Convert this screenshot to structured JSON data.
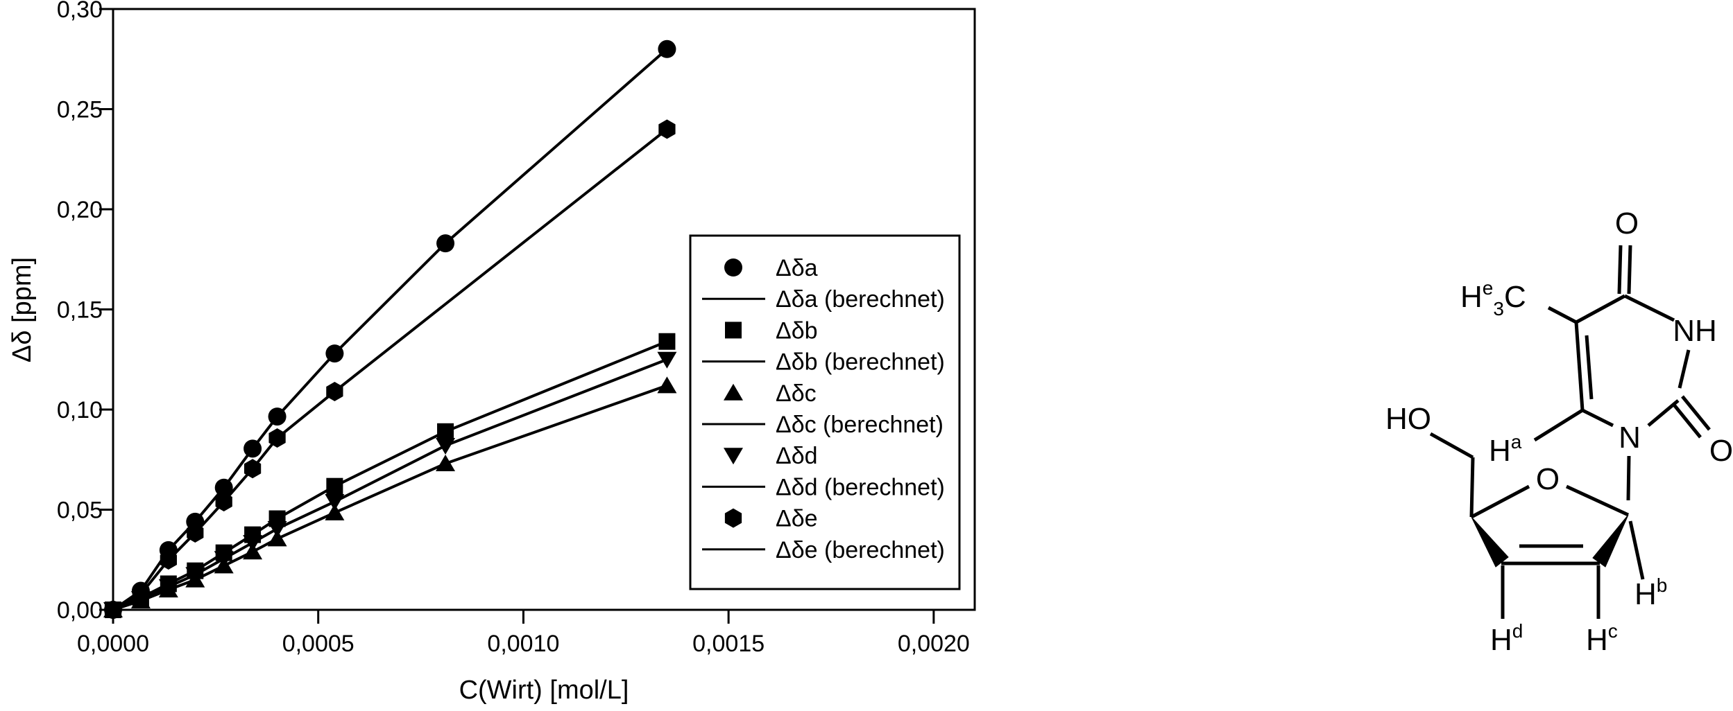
{
  "figure": {
    "background": "#ffffff",
    "ink": "#000000",
    "description_visible_text_only": true
  },
  "chart_data": {
    "type": "scatter",
    "title": "",
    "xlabel": "C(Wirt) [mol/L]",
    "ylabel": "Δδ [ppm]",
    "xlim": [
      0,
      0.0021
    ],
    "ylim": [
      0,
      0.3
    ],
    "grid": false,
    "decimal_separator": ",",
    "legend_position": "inside-right",
    "x_ticks": {
      "values": [
        0,
        0.0005,
        0.001,
        0.0015,
        0.002
      ],
      "labels": [
        "0,0000",
        "0,0005",
        "0,0010",
        "0,0015",
        "0,0020"
      ]
    },
    "y_ticks": {
      "values": [
        0,
        0.05,
        0.1,
        0.15,
        0.2,
        0.25,
        0.3
      ],
      "labels": [
        "0,00",
        "0,05",
        "0,10",
        "0,15",
        "0,20",
        "0,25",
        "0,30"
      ]
    },
    "series": [
      {
        "id": "dda",
        "label": "Δδa",
        "fit_label": "Δδa (berechnet)",
        "marker": "circle",
        "color": "#000000",
        "points": [
          [
            0,
            0
          ],
          [
            6.75e-05,
            0.0095
          ],
          [
            0.000135,
            0.0298
          ],
          [
            0.0002,
            0.044
          ],
          [
            0.00027,
            0.061
          ],
          [
            0.00034,
            0.0805
          ],
          [
            0.0004,
            0.0965
          ],
          [
            0.00054,
            0.128
          ],
          [
            0.00081,
            0.183
          ],
          [
            0.00135,
            0.28
          ]
        ]
      },
      {
        "id": "ddb",
        "label": "Δδb",
        "fit_label": "Δδb (berechnet)",
        "marker": "square",
        "color": "#000000",
        "points": [
          [
            0,
            0
          ],
          [
            6.75e-05,
            0.006
          ],
          [
            0.000135,
            0.013
          ],
          [
            0.0002,
            0.0195
          ],
          [
            0.00027,
            0.0285
          ],
          [
            0.00034,
            0.0375
          ],
          [
            0.0004,
            0.0455
          ],
          [
            0.00054,
            0.0617
          ],
          [
            0.00081,
            0.089
          ],
          [
            0.00135,
            0.134
          ]
        ]
      },
      {
        "id": "ddc",
        "label": "Δδc",
        "fit_label": "Δδc (berechnet)",
        "marker": "triangle-up",
        "color": "#000000",
        "points": [
          [
            0,
            0
          ],
          [
            6.75e-05,
            0.0045
          ],
          [
            0.000135,
            0.01
          ],
          [
            0.0002,
            0.015
          ],
          [
            0.00027,
            0.022
          ],
          [
            0.00034,
            0.029
          ],
          [
            0.0004,
            0.0355
          ],
          [
            0.00054,
            0.0485
          ],
          [
            0.00081,
            0.073
          ],
          [
            0.00135,
            0.112
          ]
        ]
      },
      {
        "id": "ddd",
        "label": "Δδd",
        "fit_label": "Δδd (berechnet)",
        "marker": "triangle-down",
        "color": "#000000",
        "points": [
          [
            0,
            0
          ],
          [
            6.75e-05,
            0.0055
          ],
          [
            0.000135,
            0.0115
          ],
          [
            0.0002,
            0.0175
          ],
          [
            0.00027,
            0.0255
          ],
          [
            0.00034,
            0.0335
          ],
          [
            0.0004,
            0.0405
          ],
          [
            0.00054,
            0.054
          ],
          [
            0.00081,
            0.082
          ],
          [
            0.00135,
            0.125
          ]
        ]
      },
      {
        "id": "dde",
        "label": "Δδe",
        "fit_label": "Δδe (berechnet)",
        "marker": "hexagon",
        "color": "#000000",
        "points": [
          [
            0,
            0
          ],
          [
            6.75e-05,
            0.0078
          ],
          [
            0.000135,
            0.0249
          ],
          [
            0.0002,
            0.0384
          ],
          [
            0.00027,
            0.054
          ],
          [
            0.00034,
            0.0705
          ],
          [
            0.0004,
            0.0858
          ],
          [
            0.00054,
            0.109
          ],
          [
            0.00135,
            0.24
          ]
        ]
      }
    ]
  },
  "molecule": {
    "labels": {
      "methyl_h": "H",
      "methyl_sup": "e",
      "methyl_sub": "3",
      "methyl_c": "C",
      "n3h": "NH",
      "o4": "O",
      "o2": "O",
      "n1": "N",
      "ha_h": "H",
      "ha_sup": "a",
      "hydroxyl": "HO",
      "ring_o": "O",
      "hb_h": "H",
      "hb_sup": "b",
      "hc_h": "H",
      "hc_sup": "c",
      "hd_h": "H",
      "hd_sup": "d"
    }
  }
}
